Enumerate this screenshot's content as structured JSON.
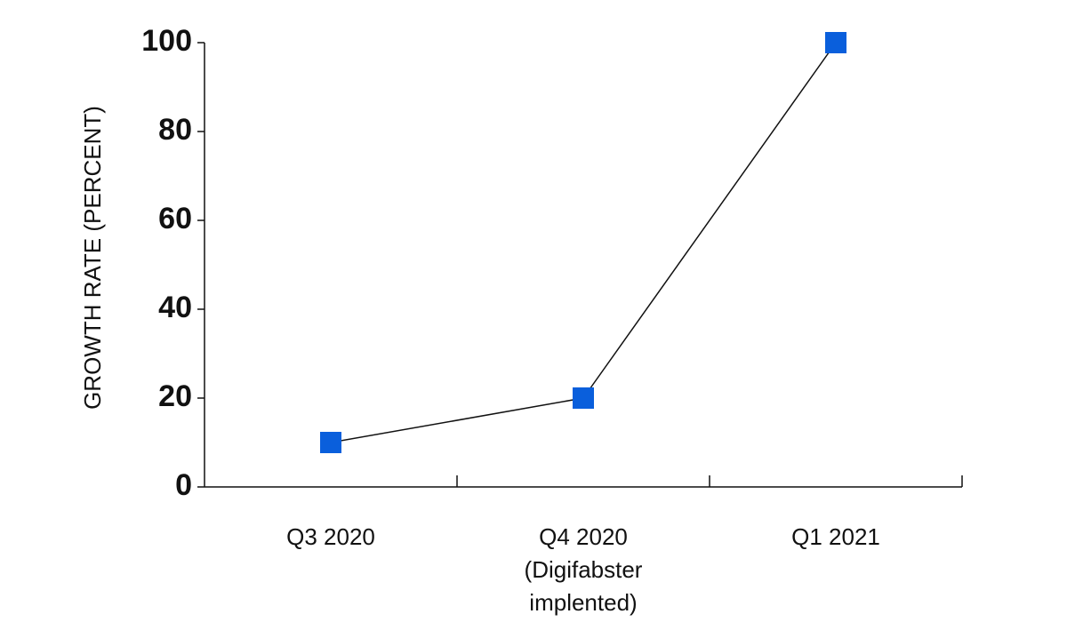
{
  "chart_data": {
    "type": "line",
    "y_label": "GROWTH RATE (PERCENT)",
    "categories": [
      "Q3 2020",
      "Q4 2020\n(Digifabster\nimplented)",
      "Q1 2021"
    ],
    "values": [
      10,
      20,
      100
    ],
    "line_color": "#111111",
    "marker_color": "#0a5fdc",
    "marker": "square",
    "ylim": [
      0,
      100
    ],
    "yticks": [
      0,
      20,
      40,
      60,
      80,
      100
    ],
    "grid": false
  }
}
